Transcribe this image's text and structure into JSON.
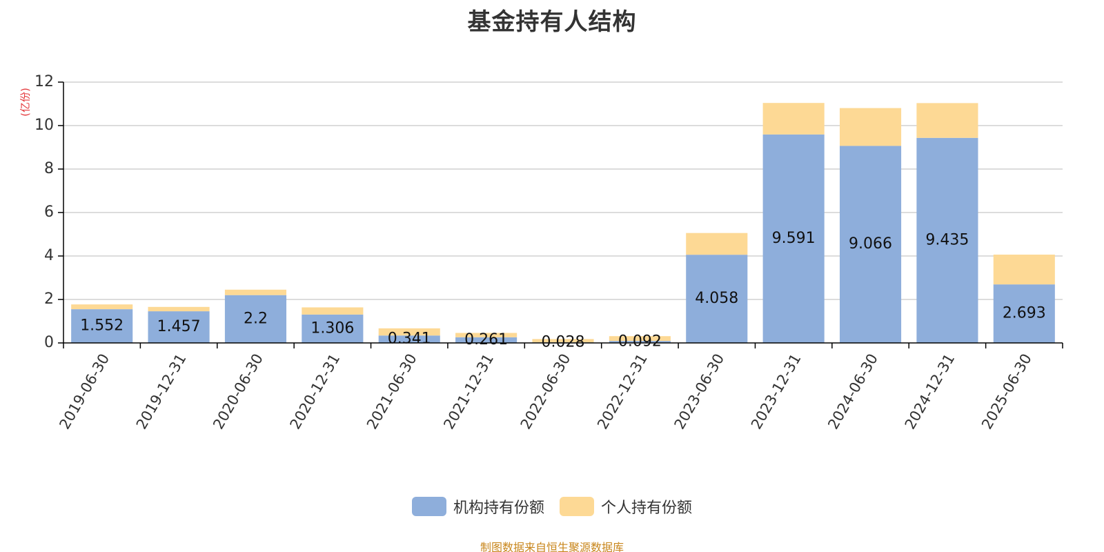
{
  "colors": {
    "institution": "#8eaedb",
    "individual": "#fdd995",
    "axis": "#000000",
    "grid": "#c8c8c8",
    "unit": "#e4393c",
    "source": "#c8861c",
    "text": "#333333"
  },
  "source_note": "制图数据来自恒生聚源数据库",
  "chart_data": {
    "type": "bar",
    "stacked": true,
    "title": "基金持有人结构",
    "ylabel": "(亿份)",
    "ylim": [
      0,
      12
    ],
    "yticks": [
      0,
      2,
      4,
      6,
      8,
      10,
      12
    ],
    "grid": true,
    "legend_position": "bottom",
    "categories": [
      "2019-06-30",
      "2019-12-31",
      "2020-06-30",
      "2020-12-31",
      "2021-06-30",
      "2021-12-31",
      "2022-06-30",
      "2022-12-31",
      "2023-06-30",
      "2023-12-31",
      "2024-06-30",
      "2024-12-31",
      "2025-06-30"
    ],
    "series": [
      {
        "name": "机构持有份额",
        "color": "#8eaedb",
        "values": [
          1.552,
          1.457,
          2.2,
          1.306,
          0.341,
          0.261,
          0.028,
          0.092,
          4.058,
          9.591,
          9.066,
          9.435,
          2.693
        ],
        "labels": [
          "1.552",
          "1.457",
          "2.2",
          "1.306",
          "0.341",
          "0.261",
          "0.028",
          "0.092",
          "4.058",
          "9.591",
          "9.066",
          "9.435",
          "2.693"
        ]
      },
      {
        "name": "个人持有份额",
        "color": "#fdd995",
        "values": [
          0.22,
          0.2,
          0.25,
          0.33,
          0.33,
          0.2,
          0.15,
          0.22,
          1.0,
          1.45,
          1.74,
          1.6,
          1.37
        ]
      }
    ]
  }
}
